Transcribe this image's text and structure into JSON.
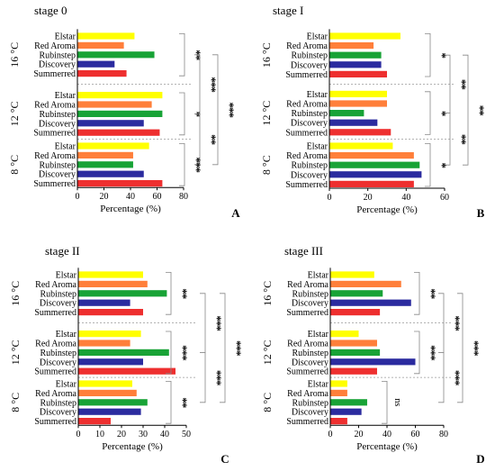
{
  "colors": {
    "Elstar": "#ffff00",
    "Red Aroma": "#ff7f3a",
    "Rubinstep": "#18a336",
    "Discovery": "#2b2b9f",
    "Summerred": "#ee2f2f"
  },
  "chart_data": [
    {
      "type": "bar",
      "orientation": "horizontal",
      "title": "stage 0",
      "panel_label": "A",
      "xlabel": "Percentage (%)",
      "xlim": [
        0,
        80
      ],
      "xticks": [
        0,
        20,
        40,
        60,
        80
      ],
      "categories": [
        "Elstar",
        "Red Aroma",
        "Rubinstep",
        "Discovery",
        "Summerred"
      ],
      "groups": [
        {
          "name": "16 °C",
          "values": [
            43,
            35,
            58,
            28,
            37
          ]
        },
        {
          "name": "12 °C",
          "values": [
            64,
            56,
            64,
            50,
            62
          ]
        },
        {
          "name": "8 °C",
          "values": [
            54,
            42,
            42,
            50,
            64
          ]
        }
      ],
      "significance": [
        {
          "between": [
            0,
            0
          ],
          "text": "**"
        },
        {
          "between": [
            0,
            1
          ],
          "text": "***"
        },
        {
          "between": [
            0,
            2
          ],
          "text": "***"
        },
        {
          "between": [
            1,
            1
          ],
          "text": "*"
        },
        {
          "between": [
            1,
            2
          ],
          "text": "**"
        },
        {
          "between": [
            2,
            2
          ],
          "text": "***"
        }
      ]
    },
    {
      "type": "bar",
      "orientation": "horizontal",
      "title": "stage I",
      "panel_label": "B",
      "xlabel": "Percentage (%)",
      "xlim": [
        0,
        60
      ],
      "xticks": [
        0,
        20,
        40,
        60
      ],
      "categories": [
        "Elstar",
        "Red Aroma",
        "Rubinstep",
        "Discovery",
        "Summerred"
      ],
      "groups": [
        {
          "name": "16 °C",
          "values": [
            37,
            23,
            27,
            27,
            30
          ]
        },
        {
          "name": "12 °C",
          "values": [
            30,
            30,
            18,
            25,
            32
          ]
        },
        {
          "name": "8 °C",
          "values": [
            33,
            44,
            47,
            48,
            44
          ]
        }
      ],
      "significance": [
        {
          "between": [
            0,
            0
          ],
          "text": "*"
        },
        {
          "between": [
            0,
            1
          ],
          "text": "**"
        },
        {
          "between": [
            0,
            2
          ],
          "text": "**"
        },
        {
          "between": [
            1,
            1
          ],
          "text": "*"
        },
        {
          "between": [
            1,
            2
          ],
          "text": "**"
        },
        {
          "between": [
            2,
            2
          ],
          "text": "*"
        }
      ]
    },
    {
      "type": "bar",
      "orientation": "horizontal",
      "title": "stage II",
      "panel_label": "C",
      "xlabel": "Percentage (%)",
      "xlim": [
        0,
        50
      ],
      "xticks": [
        0,
        10,
        20,
        30,
        40,
        50
      ],
      "categories": [
        "Elstar",
        "Red Aroma",
        "Rubinstep",
        "Discovery",
        "Summerred"
      ],
      "groups": [
        {
          "name": "16 °C",
          "values": [
            30,
            32,
            41,
            24,
            30
          ]
        },
        {
          "name": "12 °C",
          "values": [
            29,
            24,
            42,
            30,
            45
          ]
        },
        {
          "name": "8 °C",
          "values": [
            25,
            27,
            32,
            29,
            15
          ]
        }
      ],
      "significance": [
        {
          "between": [
            0,
            0
          ],
          "text": "**"
        },
        {
          "between": [
            0,
            1
          ],
          "text": "***"
        },
        {
          "between": [
            0,
            2
          ],
          "text": "***"
        },
        {
          "between": [
            1,
            1
          ],
          "text": "***"
        },
        {
          "between": [
            1,
            2
          ],
          "text": "***"
        },
        {
          "between": [
            2,
            2
          ],
          "text": "**"
        }
      ]
    },
    {
      "type": "bar",
      "orientation": "horizontal",
      "title": "stage III",
      "panel_label": "D",
      "xlabel": "Percentage (%)",
      "xlim": [
        0,
        80
      ],
      "xticks": [
        0,
        20,
        40,
        60,
        80
      ],
      "categories": [
        "Elstar",
        "Red Aroma",
        "Rubinstep",
        "Discovery",
        "Summerred"
      ],
      "groups": [
        {
          "name": "16 °C",
          "values": [
            31,
            50,
            37,
            57,
            35
          ]
        },
        {
          "name": "12 °C",
          "values": [
            20,
            33,
            35,
            60,
            33
          ]
        },
        {
          "name": "8 °C",
          "values": [
            12,
            12,
            26,
            22,
            12
          ]
        }
      ],
      "significance": [
        {
          "between": [
            0,
            0
          ],
          "text": "**"
        },
        {
          "between": [
            0,
            1
          ],
          "text": "***"
        },
        {
          "between": [
            0,
            2
          ],
          "text": "***"
        },
        {
          "between": [
            1,
            1
          ],
          "text": "***"
        },
        {
          "between": [
            1,
            2
          ],
          "text": "***"
        },
        {
          "between": [
            2,
            2
          ],
          "text": "ns"
        }
      ]
    }
  ]
}
